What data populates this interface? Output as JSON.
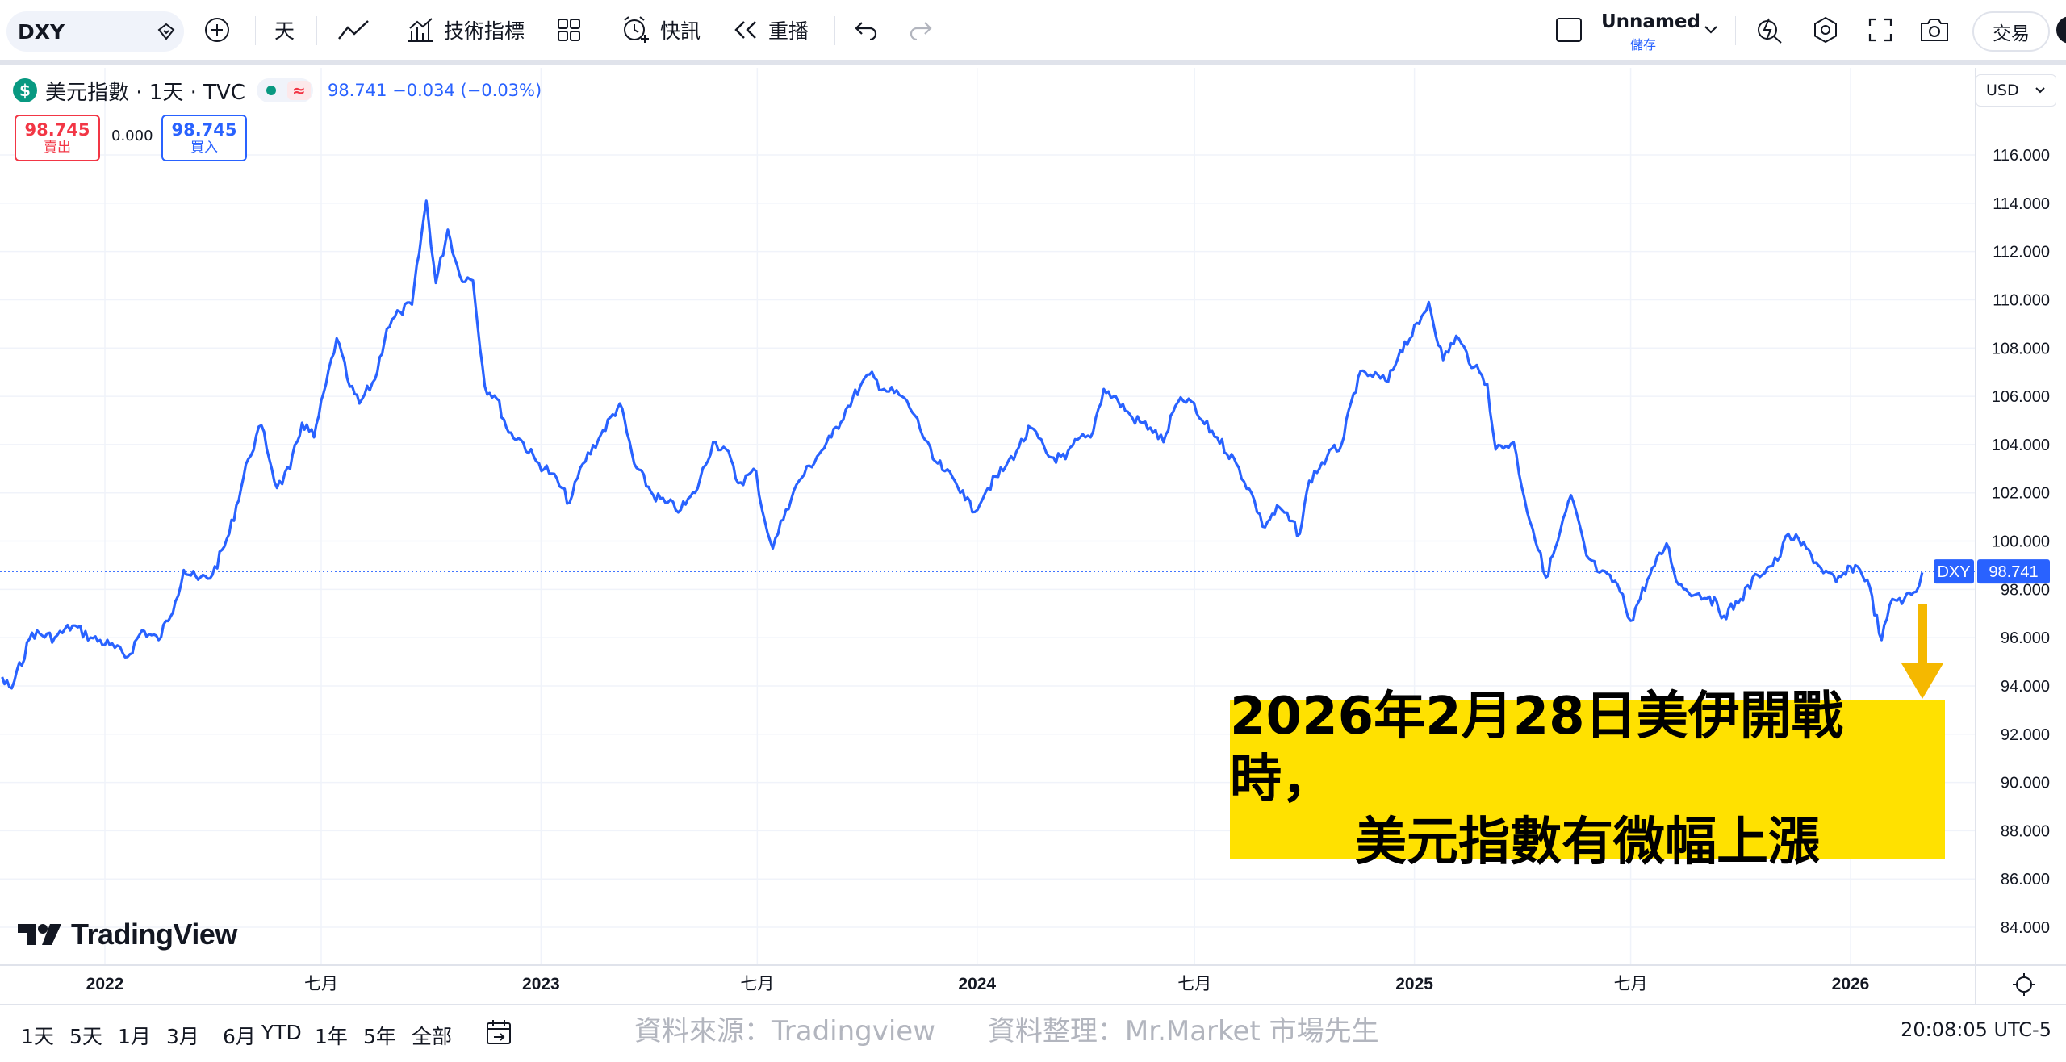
{
  "toolbar": {
    "symbol": "DXY",
    "interval": "天",
    "indicators_label": "技術指標",
    "alert_label": "快訊",
    "replay_label": "重播",
    "layout_name": "Unnamed",
    "layout_save": "儲存",
    "trade_label": "交易",
    "icons": [
      "search-icon",
      "add-symbol-icon",
      "line-chart-icon",
      "indicators-icon",
      "templates-icon",
      "alert-icon",
      "replay-icon",
      "undo-icon",
      "redo-icon",
      "layout-icon",
      "chevron-down-icon",
      "quick-search-icon",
      "settings-icon",
      "fullscreen-icon",
      "camera-icon"
    ]
  },
  "legend": {
    "logo": "$",
    "title": "美元指數 · 1天 · TVC",
    "approx": "≈",
    "values": "98.741 −0.034 (−0.03%)",
    "sell_price": "98.745",
    "sell_label": "賣出",
    "spread": "0.000",
    "buy_price": "98.745",
    "buy_label": "買入"
  },
  "price_axis": {
    "currency": "USD",
    "last_symbol": "DXY",
    "last_price": "98.741"
  },
  "branding": {
    "name": "TradingView"
  },
  "bottom_bar": {
    "ranges": [
      "1天",
      "5天",
      "1月",
      "3月",
      "6月",
      "YTD",
      "1年",
      "5年",
      "全部"
    ],
    "source_note": "資料來源：Tradingview      資料整理：Mr.Market 市場先生",
    "clock": "20:08:05 UTC-5"
  },
  "annotation": {
    "line1": "2026年2月28日美伊開戰時，",
    "line2": "美元指數有微幅上漲"
  },
  "colors": {
    "line": "#2962ff",
    "grid": "#f0f3fa",
    "annotation_bg": "#ffe100",
    "arrow": "#f5b800",
    "sell": "#f23645",
    "buy": "#2962ff"
  },
  "chart_data": {
    "type": "line",
    "series": [
      {
        "x": [
          "2021-09-01",
          "2021-09-15",
          "2021-10-01",
          "2021-10-15",
          "2021-11-01",
          "2021-11-20",
          "2021-12-05",
          "2021-12-20",
          "2022-01-05",
          "2022-01-20",
          "2022-02-01",
          "2022-02-15",
          "2022-03-01",
          "2022-03-08",
          "2022-03-20",
          "2022-04-01",
          "2022-04-15",
          "2022-05-01",
          "2022-05-12",
          "2022-05-25",
          "2022-06-05",
          "2022-06-15",
          "2022-06-25",
          "2022-07-05",
          "2022-07-14",
          "2022-07-25",
          "2022-08-02",
          "2022-08-15",
          "2022-08-25",
          "2022-09-05",
          "2022-09-15",
          "2022-09-27",
          "2022-10-05",
          "2022-10-15",
          "2022-10-25",
          "2022-11-05",
          "2022-11-15",
          "2022-11-25",
          "2022-12-05",
          "2022-12-15",
          "2022-12-28",
          "2023-01-10",
          "2023-01-25",
          "2023-02-05",
          "2023-02-20",
          "2023-03-08",
          "2023-03-20",
          "2023-04-05",
          "2023-04-15",
          "2023-04-28",
          "2023-05-10",
          "2023-05-25",
          "2023-06-05",
          "2023-06-15",
          "2023-06-30",
          "2023-07-05",
          "2023-07-14",
          "2023-07-25",
          "2023-08-05",
          "2023-08-20",
          "2023-09-01",
          "2023-09-15",
          "2023-09-25",
          "2023-10-03",
          "2023-10-15",
          "2023-10-30",
          "2023-11-10",
          "2023-11-25",
          "2023-12-05",
          "2023-12-20",
          "2023-12-28",
          "2024-01-10",
          "2024-01-25",
          "2024-02-05",
          "2024-02-15",
          "2024-03-01",
          "2024-03-15",
          "2024-03-25",
          "2024-04-05",
          "2024-04-16",
          "2024-04-28",
          "2024-05-10",
          "2024-05-25",
          "2024-06-05",
          "2024-06-15",
          "2024-06-26",
          "2024-07-05",
          "2024-07-20",
          "2024-08-05",
          "2024-08-20",
          "2024-08-27",
          "2024-09-10",
          "2024-09-27",
          "2024-10-05",
          "2024-10-20",
          "2024-11-01",
          "2024-11-15",
          "2024-11-25",
          "2024-12-10",
          "2024-12-20",
          "2025-01-05",
          "2025-01-13",
          "2025-01-25",
          "2025-02-05",
          "2025-02-20",
          "2025-03-03",
          "2025-03-10",
          "2025-03-25",
          "2025-04-03",
          "2025-04-10",
          "2025-04-21",
          "2025-05-01",
          "2025-05-12",
          "2025-05-25",
          "2025-06-05",
          "2025-06-20",
          "2025-07-01",
          "2025-07-15",
          "2025-07-31",
          "2025-08-10",
          "2025-08-25",
          "2025-09-05",
          "2025-09-17",
          "2025-10-01",
          "2025-10-15",
          "2025-11-01",
          "2025-11-10",
          "2025-11-25",
          "2025-12-05",
          "2025-12-20",
          "2026-01-05",
          "2026-01-15",
          "2026-01-27",
          "2026-02-05",
          "2026-02-15",
          "2026-02-25",
          "2026-03-02"
        ],
        "y": [
          94.0,
          93.4,
          94.5,
          93.9,
          96.2,
          96.0,
          96.5,
          96.0,
          95.7,
          95.2,
          96.3,
          95.9,
          97.5,
          98.8,
          98.4,
          98.6,
          100.3,
          103.4,
          104.8,
          102.2,
          103.0,
          104.9,
          104.3,
          106.5,
          108.4,
          106.4,
          105.7,
          106.7,
          108.8,
          109.5,
          109.8,
          114.1,
          110.7,
          112.9,
          111.0,
          110.8,
          106.4,
          105.9,
          104.5,
          104.2,
          103.3,
          102.8,
          101.6,
          103.2,
          104.4,
          105.7,
          103.2,
          101.9,
          101.6,
          101.3,
          102.0,
          104.1,
          103.8,
          102.4,
          102.9,
          101.3,
          99.7,
          101.3,
          102.5,
          103.5,
          104.3,
          105.6,
          106.4,
          106.9,
          106.3,
          106.0,
          105.2,
          103.4,
          102.9,
          102.1,
          101.2,
          102.2,
          103.1,
          103.9,
          104.7,
          103.5,
          103.4,
          104.2,
          104.3,
          106.3,
          105.8,
          105.1,
          104.7,
          104.1,
          105.6,
          105.9,
          105.1,
          104.3,
          103.2,
          101.7,
          100.6,
          101.4,
          100.3,
          102.5,
          103.5,
          104.0,
          106.8,
          106.9,
          106.6,
          107.9,
          109.0,
          109.9,
          107.5,
          108.5,
          107.2,
          106.5,
          103.8,
          104.1,
          101.8,
          100.5,
          98.5,
          100.0,
          101.9,
          99.4,
          98.7,
          98.2,
          96.7,
          98.4,
          99.9,
          98.2,
          97.8,
          97.7,
          96.9,
          97.6,
          98.6,
          99.2,
          100.3,
          99.7,
          99.0,
          98.3,
          99.0,
          98.4,
          95.9,
          97.6,
          97.6,
          97.9,
          98.7
        ]
      }
    ],
    "ylim": [
      83.0,
      117.0
    ],
    "y_ticks": [
      "84.000",
      "86.000",
      "88.000",
      "90.000",
      "92.000",
      "94.000",
      "96.000",
      "98.000",
      "100.000",
      "102.000",
      "104.000",
      "106.000",
      "108.000",
      "110.000",
      "112.000",
      "114.000",
      "116.000"
    ],
    "x_ticks": [
      "2022",
      "七月",
      "2023",
      "七月",
      "2024",
      "七月",
      "2025",
      "七月",
      "2026"
    ],
    "last_value": 98.741,
    "grid": true
  }
}
